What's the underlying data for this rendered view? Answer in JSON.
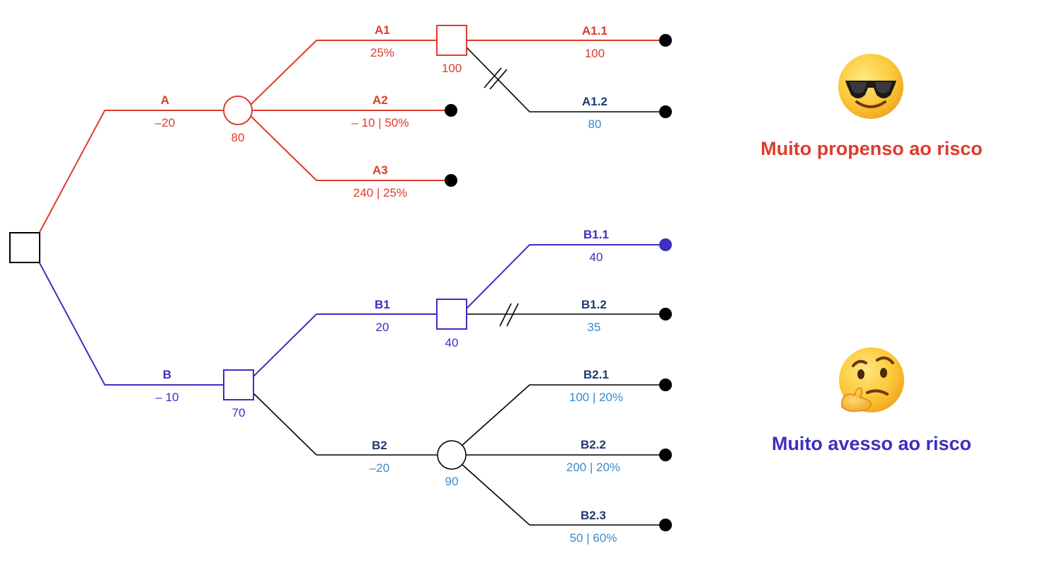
{
  "colors": {
    "red": "#df3b2b",
    "blue": "#3d2fc0",
    "black": "#000000",
    "navy": "#1f3b6e",
    "lightblue": "#3b8ac8"
  },
  "branches": {
    "A": {
      "name": "A",
      "value": "–20"
    },
    "A1": {
      "name": "A1",
      "value": "25%"
    },
    "A2": {
      "name": "A2",
      "value": "– 10 | 50%"
    },
    "A3": {
      "name": "A3",
      "value": "240 | 25%"
    },
    "A1_1": {
      "name": "A1.1",
      "value": "100"
    },
    "A1_2": {
      "name": "A1.2",
      "value": "80"
    },
    "B": {
      "name": "B",
      "value": "– 10"
    },
    "B1": {
      "name": "B1",
      "value": "20"
    },
    "B2": {
      "name": "B2",
      "value": "–20"
    },
    "B1_1": {
      "name": "B1.1",
      "value": "40"
    },
    "B1_2": {
      "name": "B1.2",
      "value": "35"
    },
    "B2_1": {
      "name": "B2.1",
      "value": "100 | 20%"
    },
    "B2_2": {
      "name": "B2.2",
      "value": "200 | 20%"
    },
    "B2_3": {
      "name": "B2.3",
      "value": "50 | 60%"
    }
  },
  "nodes": {
    "chance_a": "80",
    "decision_a1": "100",
    "decision_b": "70",
    "decision_b1": "40",
    "chance_b2": "90"
  },
  "legend": {
    "risk_seeking": {
      "label": "Muito propenso ao risco",
      "icon": "sunglasses-face-icon"
    },
    "risk_averse": {
      "label": "Muito avesso ao risco",
      "icon": "thinking-face-icon"
    }
  }
}
